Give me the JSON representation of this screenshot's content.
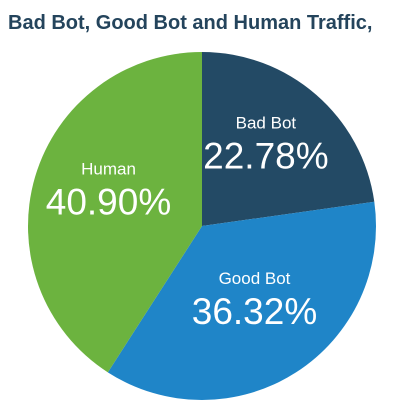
{
  "chart_data": {
    "type": "pie",
    "title": "Bad Bot, Good Bot and Human Traffic,",
    "slices": [
      {
        "label": "Bad Bot",
        "value": 22.78,
        "value_text": "22.78%",
        "color": "#234a65"
      },
      {
        "label": "Good Bot",
        "value": 36.32,
        "value_text": "36.32%",
        "color": "#1f85c8"
      },
      {
        "label": "Human",
        "value": 40.9,
        "value_text": "40.90%",
        "color": "#6cb33f"
      }
    ]
  },
  "colors": {
    "title": "#24445c",
    "background": "#ffffff"
  }
}
